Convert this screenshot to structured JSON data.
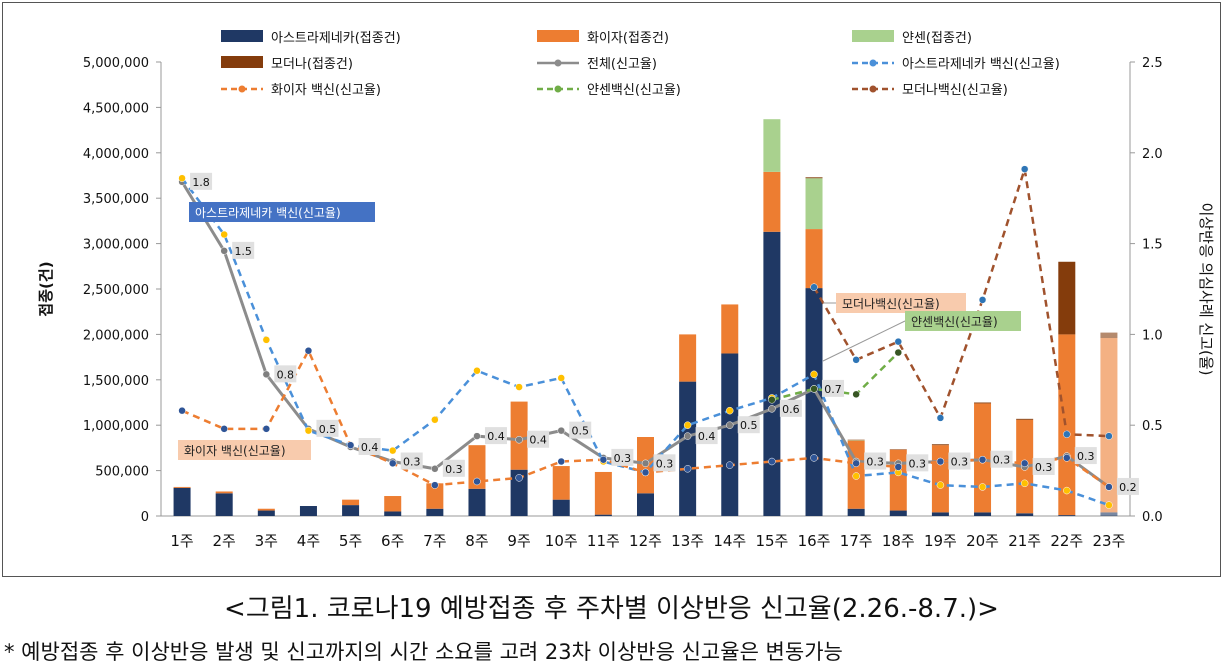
{
  "chart_data": {
    "type": "bar",
    "stacked": true,
    "categories": [
      "1주",
      "2주",
      "3주",
      "4주",
      "5주",
      "6주",
      "7주",
      "8주",
      "9주",
      "10주",
      "11주",
      "12주",
      "13주",
      "14주",
      "15주",
      "16주",
      "17주",
      "18주",
      "19주",
      "20주",
      "21주",
      "22주",
      "23주"
    ],
    "bar_series": [
      {
        "name": "아스트라제네카(접종건)",
        "color": "#1f3864",
        "values": [
          310000,
          250000,
          60000,
          110000,
          120000,
          50000,
          80000,
          300000,
          510000,
          180000,
          15000,
          250000,
          1480000,
          1790000,
          3130000,
          2510000,
          80000,
          60000,
          40000,
          40000,
          30000,
          10000,
          40000
        ]
      },
      {
        "name": "화이자(접종건)",
        "color": "#ed7d31",
        "values": [
          10000,
          20000,
          20000,
          0,
          60000,
          170000,
          280000,
          480000,
          750000,
          370000,
          470000,
          620000,
          520000,
          540000,
          660000,
          650000,
          750000,
          670000,
          740000,
          1200000,
          1030000,
          1990000,
          1920000
        ]
      },
      {
        "name": "얀센(접종건)",
        "color": "#a9d18e",
        "values": [
          0,
          0,
          0,
          0,
          0,
          0,
          0,
          0,
          0,
          0,
          0,
          0,
          0,
          0,
          580000,
          560000,
          5000,
          0,
          0,
          0,
          0,
          0,
          0
        ]
      },
      {
        "name": "모더나(접종건)",
        "color": "#843c0c",
        "values": [
          0,
          0,
          0,
          0,
          0,
          0,
          0,
          0,
          0,
          0,
          0,
          0,
          0,
          0,
          0,
          10000,
          5000,
          5000,
          10000,
          10000,
          10000,
          800000,
          60000
        ]
      }
    ],
    "line_series": [
      {
        "name": "전체(신고율)",
        "color": "#8c8c8c",
        "style": "solid",
        "values": [
          1.84,
          1.46,
          0.78,
          0.48,
          0.38,
          0.3,
          0.26,
          0.44,
          0.42,
          0.47,
          0.32,
          0.29,
          0.44,
          0.5,
          0.59,
          0.7,
          0.3,
          0.29,
          0.3,
          0.31,
          0.27,
          0.33,
          0.16
        ]
      },
      {
        "name": "아스트라제네카 백신(신고율)",
        "color": "#4a90d9",
        "style": "dashed",
        "values": [
          1.86,
          1.55,
          0.97,
          0.47,
          0.39,
          0.36,
          0.53,
          0.8,
          0.71,
          0.76,
          0.3,
          0.24,
          0.5,
          0.58,
          0.65,
          0.78,
          0.22,
          0.24,
          0.17,
          0.16,
          0.18,
          0.14,
          0.06
        ]
      },
      {
        "name": "화이자 백신(신고율)",
        "color": "#ed7d31",
        "style": "dashed",
        "values": [
          0.58,
          0.48,
          0.48,
          0.91,
          0.39,
          0.29,
          0.17,
          0.19,
          0.21,
          0.3,
          0.31,
          0.24,
          0.26,
          0.28,
          0.3,
          0.32,
          0.29,
          0.27,
          0.3,
          0.31,
          0.29,
          0.32,
          0.16
        ]
      },
      {
        "name": "얀센백신(신고율)",
        "color": "#70ad47",
        "style": "dashed",
        "values": [
          null,
          null,
          null,
          null,
          null,
          null,
          null,
          null,
          null,
          null,
          null,
          null,
          null,
          null,
          0.64,
          0.7,
          0.67,
          0.9,
          null,
          null,
          null,
          null,
          null
        ]
      },
      {
        "name": "모더나백신(신고율)",
        "color": "#a0522d",
        "style": "dashed",
        "values": [
          null,
          null,
          null,
          null,
          null,
          null,
          null,
          null,
          null,
          null,
          null,
          null,
          null,
          null,
          null,
          1.26,
          0.86,
          0.96,
          0.54,
          1.19,
          1.91,
          0.45,
          0.44
        ]
      }
    ],
    "total_labels": [
      "1.8",
      "1.5",
      "0.8",
      "0.5",
      "0.4",
      "0.3",
      "0.3",
      "0.4",
      "0.4",
      "0.5",
      "0.3",
      "0.3",
      "0.4",
      "0.5",
      "0.6",
      "0.7",
      "0.3",
      "0.3",
      "0.3",
      "0.3",
      "0.3",
      "0.3",
      "0.2"
    ],
    "y_left": {
      "label": "접종(건)",
      "min": 0,
      "max": 5000000,
      "ticks": [
        "0",
        "500,000",
        "1,000,000",
        "1,500,000",
        "2,000,000",
        "2,500,000",
        "3,000,000",
        "3,500,000",
        "4,000,000",
        "4,500,000",
        "5,000,000"
      ]
    },
    "y_right": {
      "label": "이상반응 의심사례 신고(율)",
      "min": 0,
      "max": 2.5,
      "ticks": [
        "0.0",
        "0.5",
        "1.0",
        "1.5",
        "2.0",
        "2.5"
      ]
    },
    "callouts": [
      {
        "text": "아스트라제네카 백신(신고율)",
        "bg": "#4472c4"
      },
      {
        "text": "화이자 백신(신고율)",
        "bg": "#f8cbad"
      },
      {
        "text": "모더나백신(신고율)",
        "bg": "#f8cbad"
      },
      {
        "text": "얀센백신(신고율)",
        "bg": "#a9d18e"
      }
    ],
    "legend_position": "top"
  },
  "caption": "<그림1. 코로나19 예방접종 후 주차별 이상반응 신고율(2.26.-8.7.)>",
  "footnote": "* 예방접종 후 이상반응 발생 및 신고까지의 시간 소요를 고려 23차 이상반응 신고율은 변동가능"
}
